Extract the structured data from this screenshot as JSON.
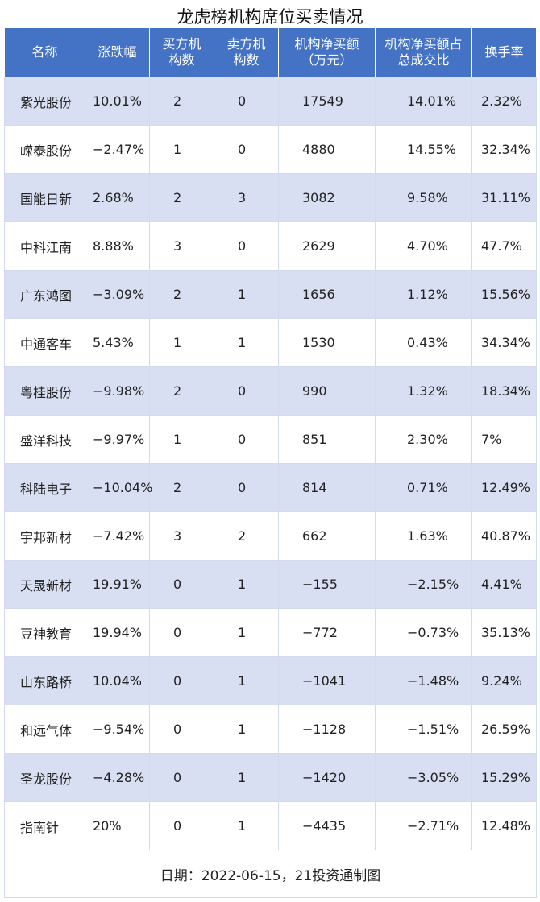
{
  "title": "龙虎榜机构席位买卖情况",
  "headers": [
    "名称",
    "涨跌幅",
    "买方机\n构数",
    "卖方机\n构数",
    "机构净买额\n（万元）",
    "机构净买额占\n总成交比",
    "换手率"
  ],
  "colors": {
    "header_bg": "#4472c4",
    "stripe": "#d9dff2"
  },
  "rows": [
    [
      "紫光股份",
      "10.01%",
      "2",
      "0",
      "17549",
      "14.01%",
      "2.32%"
    ],
    [
      "嵘泰股份",
      "−2.47%",
      "1",
      "0",
      "4880",
      "14.55%",
      "32.34%"
    ],
    [
      "国能日新",
      "2.68%",
      "2",
      "3",
      "3082",
      "9.58%",
      "31.11%"
    ],
    [
      "中科江南",
      "8.88%",
      "3",
      "0",
      "2629",
      "4.70%",
      "47.7%"
    ],
    [
      "广东鸿图",
      "−3.09%",
      "2",
      "1",
      "1656",
      "1.12%",
      "15.56%"
    ],
    [
      "中通客车",
      "5.43%",
      "1",
      "1",
      "1530",
      "0.43%",
      "34.34%"
    ],
    [
      "粤桂股份",
      "−9.98%",
      "2",
      "0",
      "990",
      "1.32%",
      "18.34%"
    ],
    [
      "盛洋科技",
      "−9.97%",
      "1",
      "0",
      "851",
      "2.30%",
      "7%"
    ],
    [
      "科陆电子",
      "−10.04%",
      "2",
      "0",
      "814",
      "0.71%",
      "12.49%"
    ],
    [
      "宇邦新材",
      "−7.42%",
      "3",
      "2",
      "662",
      "1.63%",
      "40.87%"
    ],
    [
      "天晟新材",
      "19.91%",
      "0",
      "1",
      "−155",
      "−2.15%",
      "4.41%"
    ],
    [
      "豆神教育",
      "19.94%",
      "0",
      "1",
      "−772",
      "−0.73%",
      "35.13%"
    ],
    [
      "山东路桥",
      "10.04%",
      "0",
      "1",
      "−1041",
      "−1.48%",
      "9.24%"
    ],
    [
      "和远气体",
      "−9.54%",
      "0",
      "1",
      "−1128",
      "−1.51%",
      "26.59%"
    ],
    [
      "圣龙股份",
      "−4.28%",
      "0",
      "1",
      "−1420",
      "−3.05%",
      "15.29%"
    ],
    [
      "指南针",
      "20%",
      "0",
      "1",
      "−4435",
      "−2.71%",
      "12.48%"
    ]
  ],
  "footer": "日期：2022-06-15，21投资通制图"
}
